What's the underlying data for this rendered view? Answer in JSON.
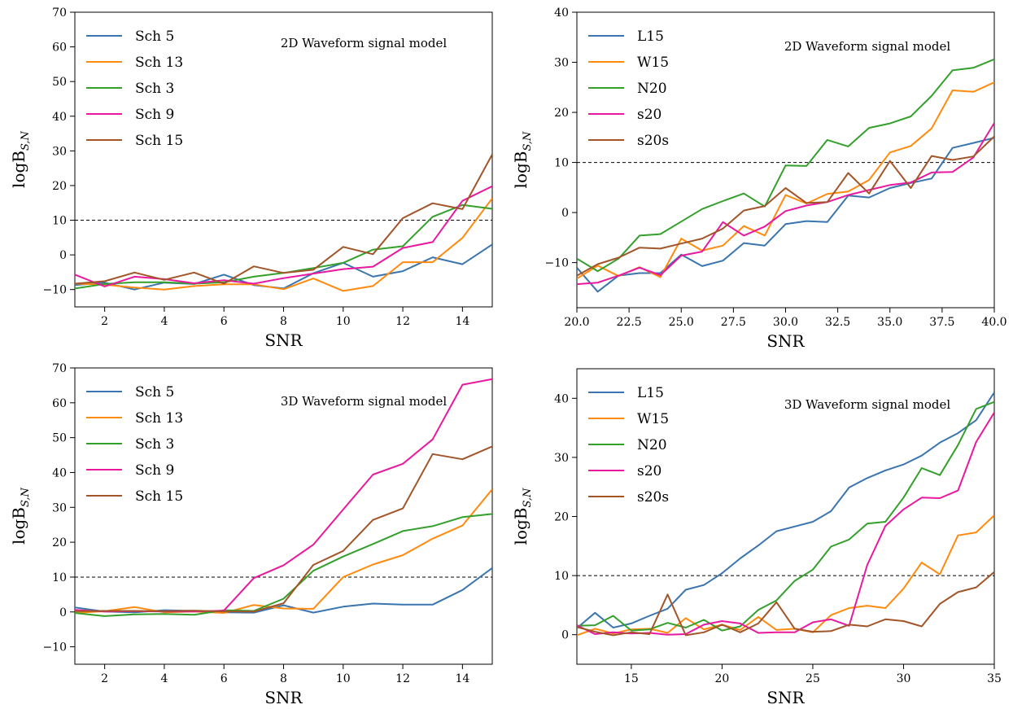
{
  "chart_data": [
    {
      "type": "line",
      "annotation": "2D Waveform signal model",
      "xlabel": "SNR",
      "ylabel": "logB",
      "ylabel_sub": "S,N",
      "xlim": [
        1,
        15
      ],
      "ylim": [
        -15,
        70
      ],
      "xticks": [
        2,
        4,
        6,
        8,
        10,
        12,
        14
      ],
      "xtick_labels": [
        "2",
        "4",
        "6",
        "8",
        "10",
        "12",
        "14"
      ],
      "yticks": [
        -10,
        0,
        10,
        20,
        30,
        40,
        50,
        60,
        70
      ],
      "ytick_labels": [
        "−10",
        "0",
        "10",
        "20",
        "30",
        "40",
        "50",
        "60",
        "70"
      ],
      "threshold": 10,
      "legend_position": "upper-left",
      "x": [
        1,
        2,
        3,
        4,
        5,
        6,
        7,
        8,
        9,
        10,
        11,
        12,
        13,
        14,
        15
      ],
      "series": [
        {
          "name": "Sch 5",
          "color": "#3a75af",
          "values": [
            -8.7,
            -8,
            -10,
            -8,
            -8.4,
            -5.7,
            -8.7,
            -9.7,
            -5.3,
            -2.3,
            -6.3,
            -4.7,
            -0.7,
            -2.7,
            3
          ]
        },
        {
          "name": "Sch 13",
          "color": "#ff8a0e",
          "values": [
            -8.3,
            -8.6,
            -9.4,
            -10,
            -9,
            -8.5,
            -8.5,
            -9.9,
            -6.8,
            -10.4,
            -9,
            -2.1,
            -2.1,
            4.9,
            16.3
          ]
        },
        {
          "name": "Sch 3",
          "color": "#34a02c",
          "values": [
            -9.7,
            -8.4,
            -7.9,
            -7.9,
            -8.3,
            -7.9,
            -6.3,
            -5.2,
            -3.8,
            -2.3,
            1.5,
            2.5,
            11,
            14.4,
            13.3
          ]
        },
        {
          "name": "Sch 9",
          "color": "#e8199f",
          "values": [
            -5.7,
            -9.1,
            -6.3,
            -7,
            -8.2,
            -7.3,
            -8.3,
            -6.7,
            -5.4,
            -4.1,
            -3.4,
            2,
            3.7,
            15.6,
            19.8
          ]
        },
        {
          "name": "Sch 15",
          "color": "#a25529",
          "values": [
            -8.3,
            -7.6,
            -5.1,
            -7.2,
            -5.1,
            -8.3,
            -3.3,
            -5.2,
            -4.3,
            2.3,
            0.2,
            10.6,
            14.9,
            13.2,
            29
          ]
        }
      ]
    },
    {
      "type": "line",
      "annotation": "2D Waveform signal model",
      "xlabel": "SNR",
      "ylabel": "logB",
      "ylabel_sub": "S,N",
      "xlim": [
        20,
        40
      ],
      "ylim": [
        -19,
        40
      ],
      "xticks": [
        20,
        22.5,
        25,
        27.5,
        30,
        32.5,
        35,
        37.5,
        40
      ],
      "xtick_labels": [
        "20.0",
        "22.5",
        "25.0",
        "27.5",
        "30.0",
        "32.5",
        "35.0",
        "37.5",
        "40.0"
      ],
      "yticks": [
        -10,
        0,
        10,
        20,
        30,
        40
      ],
      "ytick_labels": [
        "−10",
        "0",
        "10",
        "20",
        "30",
        "40"
      ],
      "threshold": 10,
      "legend_position": "upper-left",
      "x": [
        20,
        21,
        22,
        23,
        24,
        25,
        26,
        27,
        28,
        29,
        30,
        31,
        32,
        33,
        34,
        35,
        36,
        37,
        38,
        39,
        40
      ],
      "series": [
        {
          "name": "L15",
          "color": "#3a75af",
          "values": [
            -11,
            -15.8,
            -12.6,
            -12.1,
            -12.1,
            -8.4,
            -10.7,
            -9.6,
            -6.1,
            -6.6,
            -2.3,
            -1.7,
            -1.9,
            3.4,
            3,
            4.9,
            5.9,
            6.8,
            12.9,
            13.9,
            14.9
          ]
        },
        {
          "name": "W15",
          "color": "#ff8a0e",
          "values": [
            -13.2,
            -10.6,
            -12.7,
            -10.9,
            -12.9,
            -5.2,
            -7.6,
            -6.6,
            -2.7,
            -4.6,
            3.5,
            1.8,
            3.7,
            4.2,
            6.5,
            12,
            13.3,
            16.8,
            24.4,
            24.1,
            26
          ]
        },
        {
          "name": "N20",
          "color": "#34a02c",
          "values": [
            -9.2,
            -11.7,
            -9.2,
            -4.6,
            -4.3,
            -1.8,
            0.7,
            2.3,
            3.8,
            1.2,
            9.4,
            9.3,
            14.5,
            13.2,
            16.9,
            17.8,
            19.2,
            23.3,
            28.4,
            28.9,
            30.6
          ]
        },
        {
          "name": "s20",
          "color": "#e8199f",
          "values": [
            -14.3,
            -14,
            -12.6,
            -11,
            -12.5,
            -8.6,
            -7.8,
            -1.9,
            -4.6,
            -2.8,
            0.3,
            1.4,
            2.1,
            3.5,
            4.5,
            5.5,
            6,
            8,
            8.1,
            11,
            17.9
          ]
        },
        {
          "name": "s20s",
          "color": "#a25529",
          "values": [
            -12.6,
            -10.3,
            -9,
            -7,
            -7.2,
            -6.2,
            -5.2,
            -3.2,
            0.4,
            1.3,
            4.9,
            1.9,
            2.1,
            7.9,
            3.8,
            10.3,
            4.9,
            11.3,
            10.5,
            11.2,
            15.2
          ]
        }
      ]
    },
    {
      "type": "line",
      "annotation": "3D Waveform signal model",
      "xlabel": "SNR",
      "ylabel": "logB",
      "ylabel_sub": "S,N",
      "xlim": [
        1,
        15
      ],
      "ylim": [
        -15,
        70
      ],
      "xticks": [
        2,
        4,
        6,
        8,
        10,
        12,
        14
      ],
      "xtick_labels": [
        "2",
        "4",
        "6",
        "8",
        "10",
        "12",
        "14"
      ],
      "yticks": [
        -10,
        0,
        10,
        20,
        30,
        40,
        50,
        60,
        70
      ],
      "ytick_labels": [
        "−10",
        "0",
        "10",
        "20",
        "30",
        "40",
        "50",
        "60",
        "70"
      ],
      "threshold": 10,
      "legend_position": "upper-left",
      "x": [
        1,
        2,
        3,
        4,
        5,
        6,
        7,
        8,
        9,
        10,
        11,
        12,
        13,
        14,
        15
      ],
      "series": [
        {
          "name": "Sch 5",
          "color": "#3a75af",
          "values": [
            1.3,
            0.1,
            -0.1,
            0.5,
            0.3,
            -0.1,
            -0.2,
            1.9,
            -0.2,
            1.5,
            2.4,
            2.1,
            2.1,
            6.3,
            12.6
          ]
        },
        {
          "name": "Sch 13",
          "color": "#ff8a0e",
          "values": [
            -0.3,
            0.2,
            1.4,
            -0.1,
            0.1,
            -0.3,
            2,
            1,
            0.9,
            10,
            13.6,
            16.3,
            21,
            24.8,
            35.2
          ]
        },
        {
          "name": "Sch 3",
          "color": "#34a02c",
          "values": [
            -0.3,
            -1.2,
            -0.7,
            -0.6,
            -0.8,
            0.5,
            0.3,
            3.8,
            11.8,
            15.9,
            19.5,
            23.2,
            24.6,
            27.2,
            28.1
          ]
        },
        {
          "name": "Sch 9",
          "color": "#e8199f",
          "values": [
            0.6,
            0.1,
            0.2,
            0.1,
            0.1,
            0.4,
            9.7,
            13.4,
            19.3,
            29.4,
            39.4,
            42.5,
            49.5,
            65.2,
            66.8
          ]
        },
        {
          "name": "Sch 15",
          "color": "#a25529",
          "values": [
            0.2,
            0.3,
            0.3,
            0.2,
            0.4,
            0.1,
            0.1,
            2.5,
            13.5,
            17.5,
            26.4,
            29.7,
            45.3,
            43.8,
            47.5
          ]
        }
      ]
    },
    {
      "type": "line",
      "annotation": "3D Waveform signal model",
      "xlabel": "SNR",
      "ylabel": "logB",
      "ylabel_sub": "S,N",
      "xlim": [
        12,
        35
      ],
      "ylim": [
        -5,
        45
      ],
      "xticks": [
        15,
        20,
        25,
        30,
        35
      ],
      "xtick_labels": [
        "15",
        "20",
        "25",
        "30",
        "35"
      ],
      "yticks": [
        0,
        10,
        20,
        30,
        40
      ],
      "ytick_labels": [
        "0",
        "10",
        "20",
        "30",
        "40"
      ],
      "threshold": 10,
      "legend_position": "upper-left",
      "x": [
        12,
        13,
        14,
        15,
        16,
        17,
        18,
        19,
        20,
        21,
        22,
        23,
        24,
        25,
        26,
        27,
        28,
        29,
        30,
        31,
        32,
        33,
        34,
        35
      ],
      "series": [
        {
          "name": "L15",
          "color": "#3a75af",
          "values": [
            1.1,
            3.7,
            1.2,
            1.9,
            3.2,
            4.4,
            7.6,
            8.4,
            10.4,
            12.9,
            15.1,
            17.5,
            18.3,
            19.1,
            20.9,
            24.9,
            26.5,
            27.8,
            28.8,
            30.3,
            32.5,
            34.1,
            36.3,
            41
          ]
        },
        {
          "name": "W15",
          "color": "#ff8a0e",
          "values": [
            -0.1,
            1,
            0.2,
            0.9,
            1,
            0.3,
            2.8,
            0.9,
            1.7,
            0.8,
            3,
            0.8,
            1,
            0.4,
            3.3,
            4.5,
            4.9,
            4.5,
            7.8,
            12.2,
            10.2,
            16.8,
            17.3,
            20.2
          ]
        },
        {
          "name": "N20",
          "color": "#34a02c",
          "values": [
            1.5,
            1.6,
            3.2,
            0.7,
            0.9,
            2,
            1.2,
            2.5,
            0.7,
            1.4,
            4.2,
            5.8,
            9.1,
            11,
            14.9,
            16.1,
            18.8,
            19.1,
            23.2,
            28.2,
            27,
            32.1,
            38.2,
            39.4
          ]
        },
        {
          "name": "s20",
          "color": "#e8199f",
          "values": [
            1.6,
            0.1,
            0.4,
            0.2,
            0.3,
            0,
            0.1,
            1.7,
            2.3,
            1.9,
            0.3,
            0.4,
            0.4,
            2.1,
            2.6,
            1.5,
            11.8,
            18.4,
            21.2,
            23.2,
            23.1,
            24.4,
            32.6,
            37.6
          ]
        },
        {
          "name": "s20s",
          "color": "#a25529",
          "values": [
            1.3,
            0.5,
            -0.1,
            0.4,
            0.1,
            6.8,
            -0.1,
            0.4,
            1.7,
            0.4,
            1.9,
            5.5,
            1,
            0.5,
            0.6,
            1.7,
            1.4,
            2.6,
            2.3,
            1.4,
            5.2,
            7.2,
            8,
            10.6
          ]
        }
      ]
    }
  ]
}
